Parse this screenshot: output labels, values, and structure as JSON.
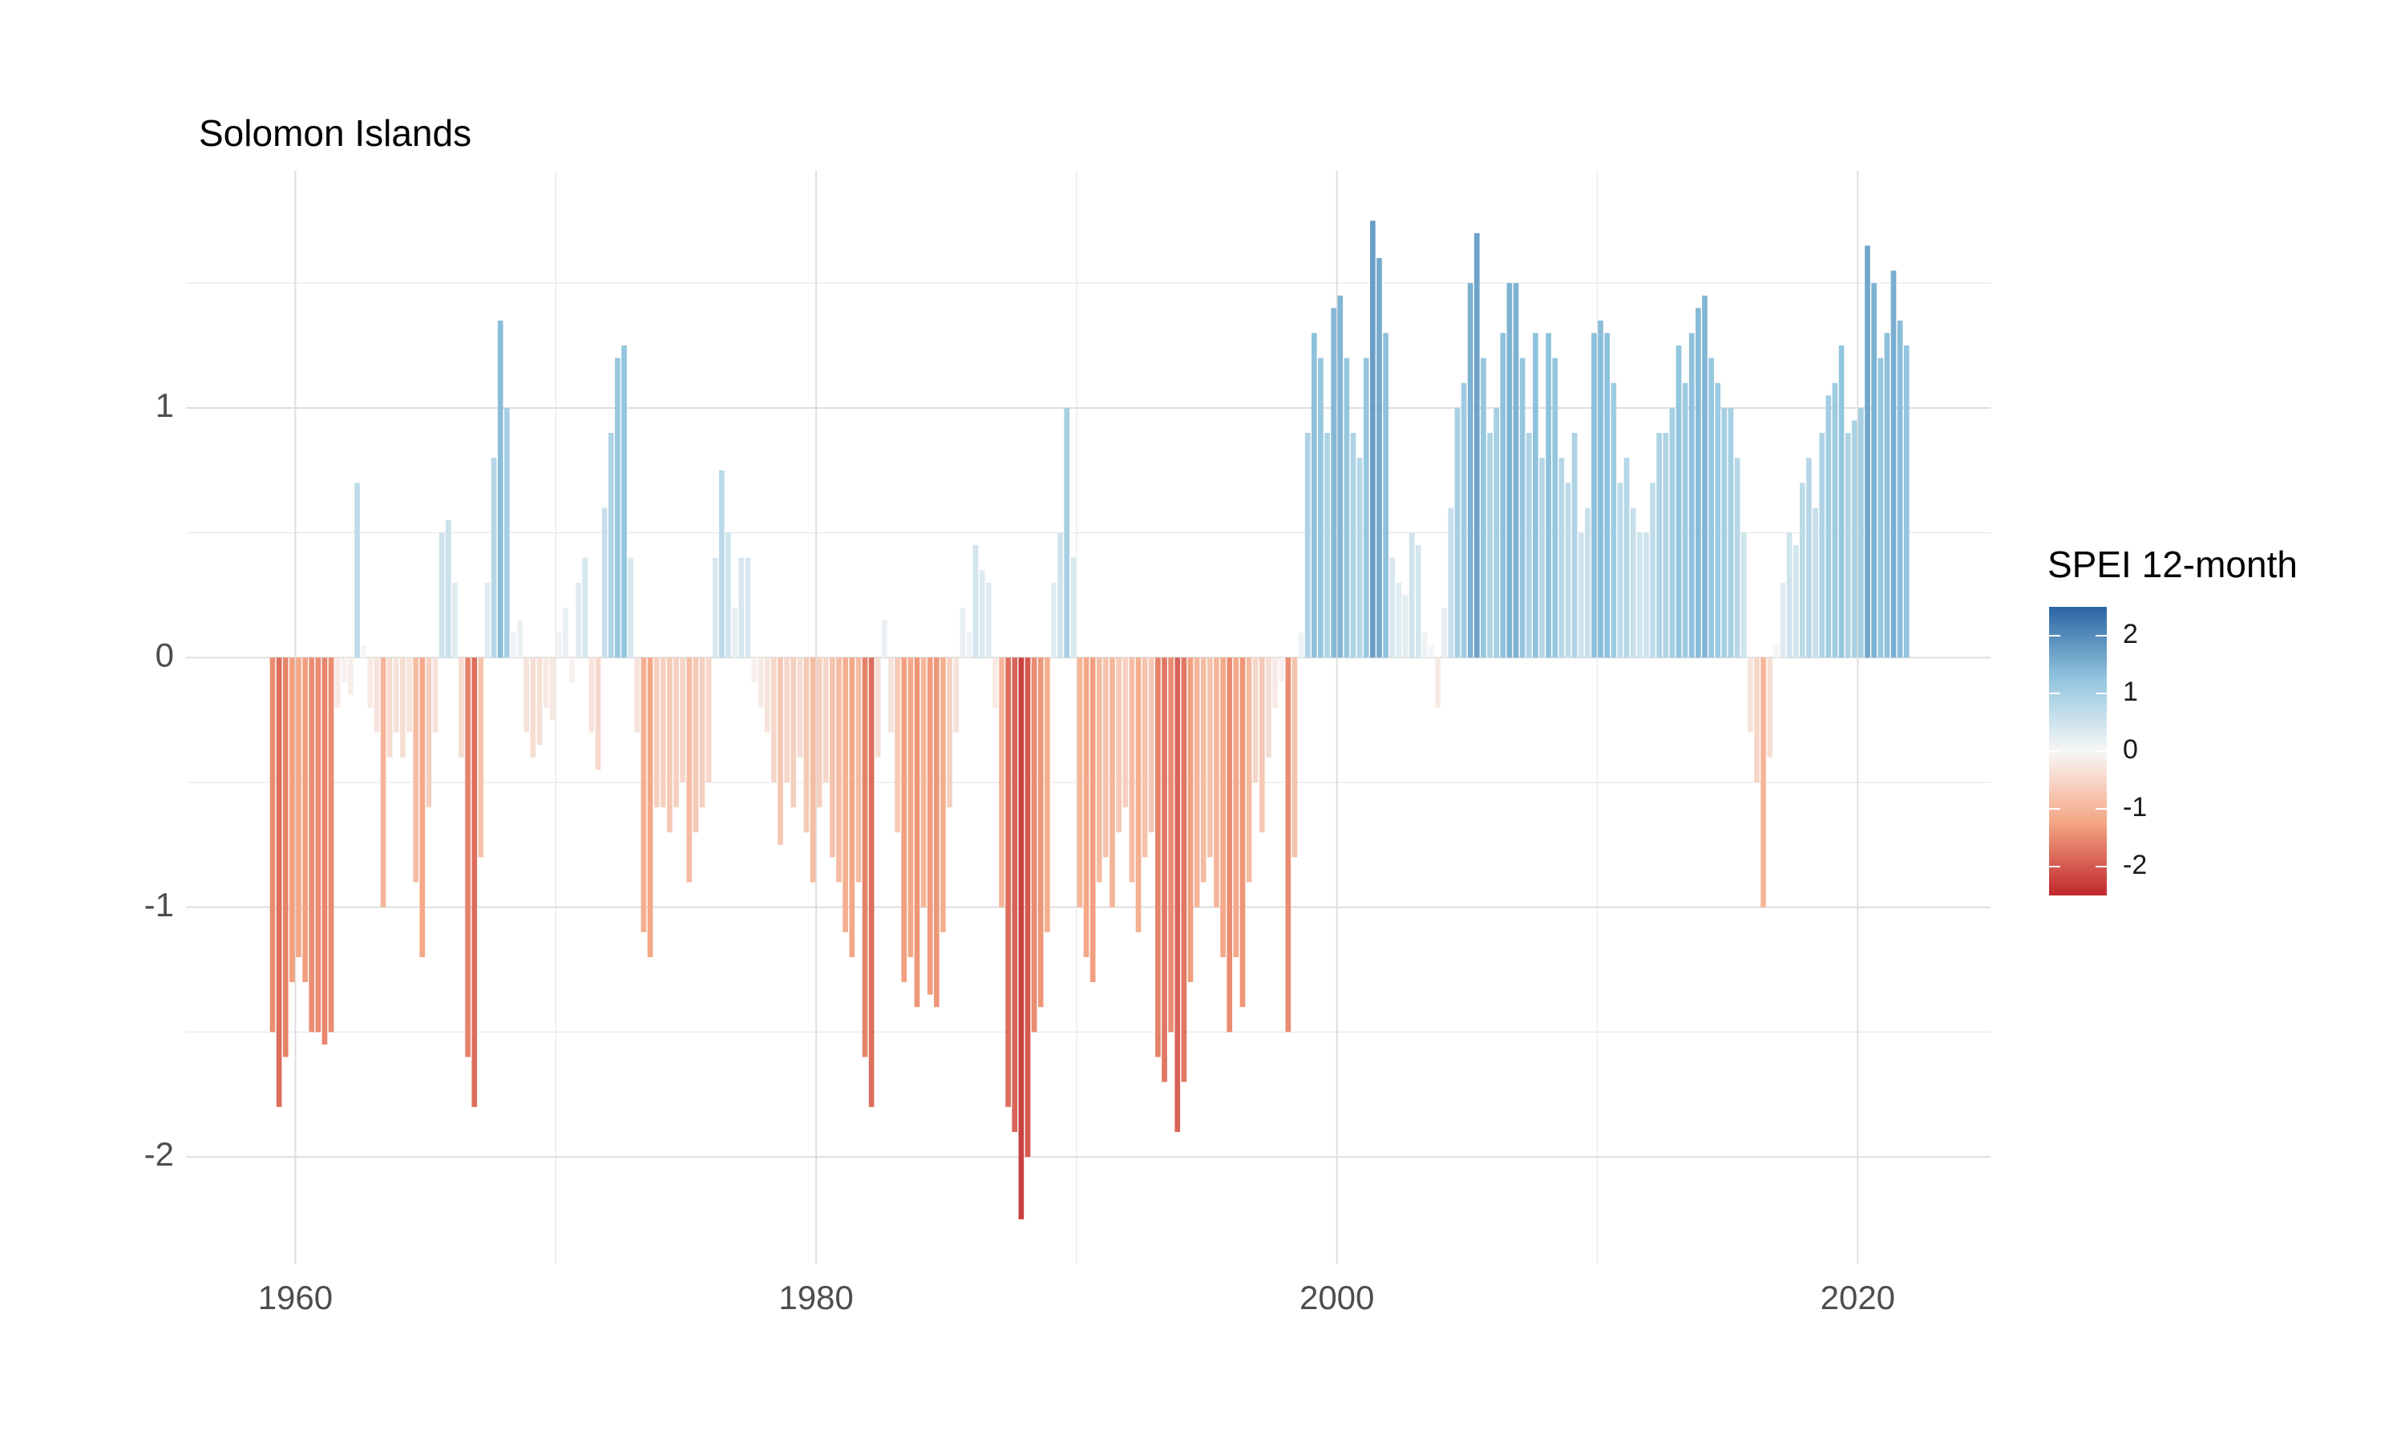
{
  "chart_data": {
    "type": "bar",
    "title": "Solomon Islands",
    "x": [
      1959,
      1959.25,
      1959.5,
      1959.75,
      1960,
      1960.25,
      1960.5,
      1960.75,
      1961,
      1961.25,
      1961.5,
      1961.75,
      1962,
      1962.25,
      1962.5,
      1962.75,
      1963,
      1963.25,
      1963.5,
      1963.75,
      1964,
      1964.25,
      1964.5,
      1964.75,
      1965,
      1965.25,
      1965.5,
      1965.75,
      1966,
      1966.25,
      1966.5,
      1966.75,
      1967,
      1967.25,
      1967.5,
      1967.75,
      1968,
      1968.25,
      1968.5,
      1968.75,
      1969,
      1969.25,
      1969.5,
      1969.75,
      1970,
      1970.25,
      1970.5,
      1970.75,
      1971,
      1971.25,
      1971.5,
      1971.75,
      1972,
      1972.25,
      1972.5,
      1972.75,
      1973,
      1973.25,
      1973.5,
      1973.75,
      1974,
      1974.25,
      1974.5,
      1974.75,
      1975,
      1975.25,
      1975.5,
      1975.75,
      1976,
      1976.25,
      1976.5,
      1976.75,
      1977,
      1977.25,
      1977.5,
      1977.75,
      1978,
      1978.25,
      1978.5,
      1978.75,
      1979,
      1979.25,
      1979.5,
      1979.75,
      1980,
      1980.25,
      1980.5,
      1980.75,
      1981,
      1981.25,
      1981.5,
      1981.75,
      1982,
      1982.25,
      1982.5,
      1982.75,
      1983,
      1983.25,
      1983.5,
      1983.75,
      1984,
      1984.25,
      1984.5,
      1984.75,
      1985,
      1985.25,
      1985.5,
      1985.75,
      1986,
      1986.25,
      1986.5,
      1986.75,
      1987,
      1987.25,
      1987.5,
      1987.75,
      1988,
      1988.25,
      1988.5,
      1988.75,
      1989,
      1989.25,
      1989.5,
      1989.75,
      1990,
      1990.25,
      1990.5,
      1990.75,
      1991,
      1991.25,
      1991.5,
      1991.75,
      1992,
      1992.25,
      1992.5,
      1992.75,
      1993,
      1993.25,
      1993.5,
      1993.75,
      1994,
      1994.25,
      1994.5,
      1994.75,
      1995,
      1995.25,
      1995.5,
      1995.75,
      1996,
      1996.25,
      1996.5,
      1996.75,
      1997,
      1997.25,
      1997.5,
      1997.75,
      1998,
      1998.25,
      1998.5,
      1998.75,
      1999,
      1999.25,
      1999.5,
      1999.75,
      2000,
      2000.25,
      2000.5,
      2000.75,
      2001,
      2001.25,
      2001.5,
      2001.75,
      2002,
      2002.25,
      2002.5,
      2002.75,
      2003,
      2003.25,
      2003.5,
      2003.75,
      2004,
      2004.25,
      2004.5,
      2004.75,
      2005,
      2005.25,
      2005.5,
      2005.75,
      2006,
      2006.25,
      2006.5,
      2006.75,
      2007,
      2007.25,
      2007.5,
      2007.75,
      2008,
      2008.25,
      2008.5,
      2008.75,
      2009,
      2009.25,
      2009.5,
      2009.75,
      2010,
      2010.25,
      2010.5,
      2010.75,
      2011,
      2011.25,
      2011.5,
      2011.75,
      2012,
      2012.25,
      2012.5,
      2012.75,
      2013,
      2013.25,
      2013.5,
      2013.75,
      2014,
      2014.25,
      2014.5,
      2014.75,
      2015,
      2015.25,
      2015.5,
      2015.75,
      2016,
      2016.25,
      2016.5,
      2016.75,
      2017,
      2017.25,
      2017.5,
      2017.75,
      2018,
      2018.25,
      2018.5,
      2018.75,
      2019,
      2019.25,
      2019.5,
      2019.75,
      2020,
      2020.25,
      2020.5,
      2020.75,
      2021,
      2021.25,
      2021.5,
      2021.75
    ],
    "values": [
      -1.5,
      -1.8,
      -1.6,
      -1.3,
      -1.2,
      -1.3,
      -1.5,
      -1.5,
      -1.55,
      -1.5,
      -0.2,
      -0.1,
      -0.15,
      0.7,
      0.05,
      -0.2,
      -0.3,
      -1.0,
      -0.4,
      -0.3,
      -0.4,
      -0.3,
      -0.9,
      -1.2,
      -0.6,
      -0.3,
      0.5,
      0.55,
      0.3,
      -0.4,
      -1.6,
      -1.8,
      -0.8,
      0.3,
      0.8,
      1.35,
      1.0,
      0.1,
      0.15,
      -0.3,
      -0.4,
      -0.35,
      -0.2,
      -0.25,
      0.1,
      0.2,
      -0.1,
      0.3,
      0.4,
      -0.3,
      -0.45,
      0.6,
      0.9,
      1.2,
      1.25,
      0.4,
      -0.3,
      -1.1,
      -1.2,
      -0.6,
      -0.6,
      -0.7,
      -0.6,
      -0.5,
      -0.9,
      -0.7,
      -0.6,
      -0.5,
      0.4,
      0.75,
      0.5,
      0.2,
      0.4,
      0.4,
      -0.1,
      -0.2,
      -0.3,
      -0.5,
      -0.75,
      -0.5,
      -0.6,
      -0.4,
      -0.7,
      -0.9,
      -0.6,
      -0.5,
      -0.8,
      -0.9,
      -1.1,
      -1.2,
      -0.9,
      -1.6,
      -1.8,
      -0.4,
      0.15,
      -0.3,
      -0.7,
      -1.3,
      -1.2,
      -1.4,
      -1.0,
      -1.35,
      -1.4,
      -1.1,
      -0.6,
      -0.3,
      0.2,
      0.1,
      0.45,
      0.35,
      0.3,
      -0.2,
      -1.0,
      -1.8,
      -1.9,
      -2.25,
      -2.0,
      -1.5,
      -1.4,
      -1.1,
      0.3,
      0.5,
      1.0,
      0.4,
      -1.0,
      -1.2,
      -1.3,
      -0.9,
      -0.8,
      -1.0,
      -0.7,
      -0.6,
      -0.9,
      -1.1,
      -0.8,
      -0.7,
      -1.6,
      -1.7,
      -1.5,
      -1.9,
      -1.7,
      -1.3,
      -1.0,
      -0.9,
      -0.8,
      -1.0,
      -1.2,
      -1.5,
      -1.2,
      -1.4,
      -0.9,
      -0.5,
      -0.7,
      -0.4,
      -0.2,
      -0.1,
      -1.5,
      -0.8,
      0.1,
      0.9,
      1.3,
      1.2,
      0.9,
      1.4,
      1.45,
      1.2,
      0.9,
      0.8,
      1.2,
      1.75,
      1.6,
      1.3,
      0.4,
      0.3,
      0.25,
      0.5,
      0.45,
      0.1,
      0.05,
      -0.2,
      0.2,
      0.6,
      1.0,
      1.1,
      1.5,
      1.7,
      1.2,
      0.9,
      1.0,
      1.3,
      1.5,
      1.5,
      1.2,
      0.9,
      1.3,
      0.8,
      1.3,
      1.2,
      0.8,
      0.7,
      0.9,
      0.5,
      0.6,
      1.3,
      1.35,
      1.3,
      1.1,
      0.7,
      0.8,
      0.6,
      0.5,
      0.5,
      0.7,
      0.9,
      0.9,
      1.0,
      1.25,
      1.1,
      1.3,
      1.4,
      1.45,
      1.2,
      1.1,
      1.0,
      1.0,
      0.8,
      0.5,
      -0.3,
      -0.5,
      -1.0,
      -0.4,
      0.05,
      0.3,
      0.5,
      0.45,
      0.7,
      0.8,
      0.6,
      0.9,
      1.05,
      1.1,
      1.25,
      0.9,
      0.95,
      1.0,
      1.65,
      1.5,
      1.2,
      1.3,
      1.55,
      1.35,
      1.25
    ],
    "xlim": [
      1955.8,
      2025.1
    ],
    "xticks": [
      1960,
      1980,
      2000,
      2020
    ],
    "ylim": [
      -2.43,
      1.95
    ],
    "yticks": [
      -2,
      -1,
      0,
      1
    ],
    "grid": true,
    "colorbar": {
      "title": "SPEI 12-month",
      "lim": [
        -2.5,
        2.5
      ],
      "ticks": [
        -2,
        -1,
        0,
        1,
        2
      ],
      "colors": [
        "#c0272d",
        "#f4a582",
        "#f7f7f7",
        "#92c5de",
        "#2b65a3"
      ]
    }
  }
}
